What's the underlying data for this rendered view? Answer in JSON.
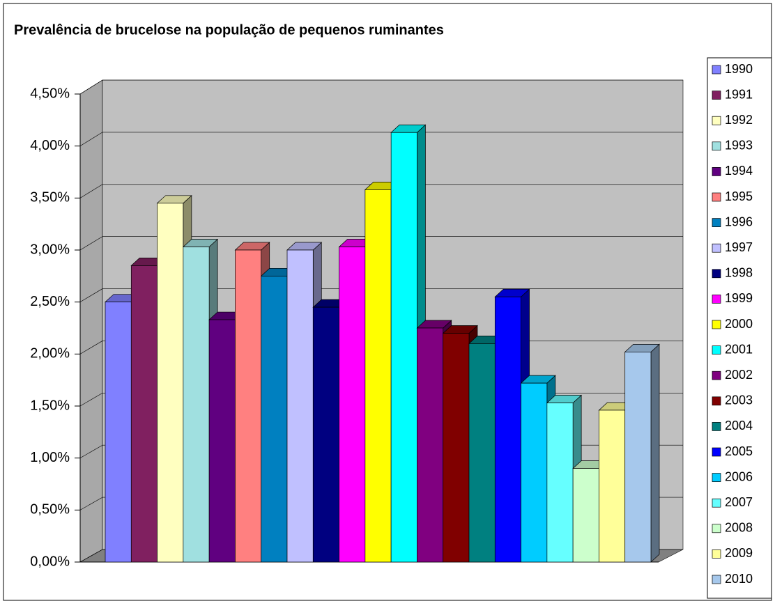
{
  "chart_data": {
    "type": "bar3d",
    "title": "Prevalência de brucelose na população de pequenos ruminantes",
    "ylim": [
      0,
      4.5
    ],
    "yticks": [
      {
        "value": 0,
        "label": "0,00%"
      },
      {
        "value": 0.5,
        "label": "0,50%"
      },
      {
        "value": 1,
        "label": "1,00%"
      },
      {
        "value": 1.5,
        "label": "1,50%"
      },
      {
        "value": 2,
        "label": "2,00%"
      },
      {
        "value": 2.5,
        "label": "2,50%"
      },
      {
        "value": 3,
        "label": "3,00%"
      },
      {
        "value": 3.5,
        "label": "3,50%"
      },
      {
        "value": 4,
        "label": "4,00%"
      },
      {
        "value": 4.5,
        "label": "4,50%"
      }
    ],
    "grid": true,
    "legend": "right",
    "series": [
      {
        "name": "1990",
        "color": "#8080ff",
        "values": [
          2.5
        ]
      },
      {
        "name": "1991",
        "color": "#802060",
        "values": [
          2.85
        ]
      },
      {
        "name": "1992",
        "color": "#ffffc0",
        "values": [
          3.45
        ]
      },
      {
        "name": "1993",
        "color": "#a0e0e0",
        "values": [
          3.03
        ]
      },
      {
        "name": "1994",
        "color": "#600080",
        "values": [
          2.33
        ]
      },
      {
        "name": "1995",
        "color": "#ff8080",
        "values": [
          3.0
        ]
      },
      {
        "name": "1996",
        "color": "#0080c0",
        "values": [
          2.75
        ]
      },
      {
        "name": "1997",
        "color": "#c0c0ff",
        "values": [
          3.0
        ]
      },
      {
        "name": "1998",
        "color": "#000080",
        "values": [
          2.45
        ]
      },
      {
        "name": "1999",
        "color": "#ff00ff",
        "values": [
          3.03
        ]
      },
      {
        "name": "2000",
        "color": "#ffff00",
        "values": [
          3.58
        ]
      },
      {
        "name": "2001",
        "color": "#00ffff",
        "values": [
          4.13
        ]
      },
      {
        "name": "2002",
        "color": "#800080",
        "values": [
          2.25
        ]
      },
      {
        "name": "2003",
        "color": "#800000",
        "values": [
          2.2
        ]
      },
      {
        "name": "2004",
        "color": "#008080",
        "values": [
          2.1
        ]
      },
      {
        "name": "2005",
        "color": "#0000ff",
        "values": [
          2.55
        ]
      },
      {
        "name": "2006",
        "color": "#00ccff",
        "values": [
          1.72
        ]
      },
      {
        "name": "2007",
        "color": "#66ffff",
        "values": [
          1.53
        ]
      },
      {
        "name": "2008",
        "color": "#ccffcc",
        "values": [
          0.9
        ]
      },
      {
        "name": "2009",
        "color": "#ffff99",
        "values": [
          1.46
        ]
      },
      {
        "name": "2010",
        "color": "#a6c8ec",
        "values": [
          2.02
        ]
      }
    ]
  }
}
